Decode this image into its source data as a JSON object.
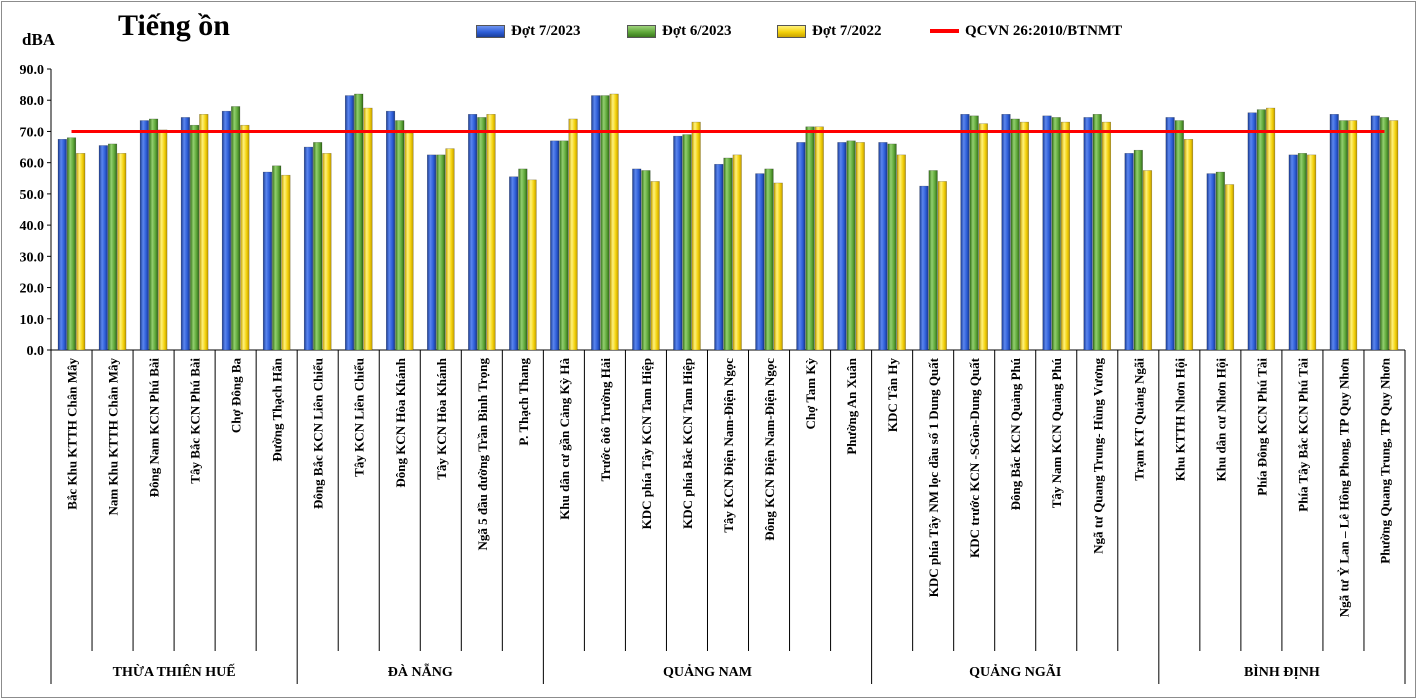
{
  "chart_data": {
    "type": "bar",
    "title": "Tiếng ồn",
    "ylabel": "dBA",
    "ylim": [
      0,
      90
    ],
    "yticks": [
      "0.0",
      "10.0",
      "20.0",
      "30.0",
      "40.0",
      "50.0",
      "60.0",
      "70.0",
      "80.0",
      "90.0"
    ],
    "grid": false,
    "legend_position": "top",
    "categories": [
      "Bắc Khu KTTH Chân Mây",
      "Nam Khu KTTH Chân Mây",
      "Đông Nam KCN Phú Bài",
      "Tây Bắc KCN Phú Bài",
      "Chợ Đông Ba",
      "Đường Thạch Hãn",
      "Đông Bắc KCN Liên Chiểu",
      "Tây KCN Liên Chiểu",
      "Đông KCN Hòa Khánh",
      "Tây KCN Hòa Khánh",
      "Ngã 5 đầu đường Trần Bình Trọng",
      "P. Thạch Thang",
      "Khu dân cư gần Cảng Kỳ Hà",
      "Trước ôtô Trường Hải",
      "KDC phía Tây KCN Tam Hiệp",
      "KDC phía Bắc KCN Tam Hiệp",
      "Tây KCN Điện Nam-Điện Ngọc",
      "Đông KCN Điện Nam-Điện Ngọc",
      "Chợ Tam Kỳ",
      "Phường An Xuân",
      "KDC Tân Hy",
      "KDC phía Tây NM lọc dầu số 1 Dung Quất",
      "KDC trước KCN -SGòn-Dung Quất",
      "Đông Bắc KCN Quảng Phú",
      "Tây Nam KCN Quảng Phú",
      "Ngã tư Quang Trung- Hùng Vương",
      "Trạm KT Quảng Ngãi",
      "Khu KTTH Nhơn Hội",
      "Khu dân cư Nhơn Hội",
      "Phía Đông KCN Phú Tài",
      "Phía Tây Bắc KCN Phú Tài",
      "Ngã tư Ỷ Lan – Lê Hồng Phong, TP Quy Nhơn",
      "Phường Quang Trung, TP Quy Nhơn"
    ],
    "series": [
      {
        "name": "Đợt 7/2023",
        "color": "#2e5ed8",
        "values": [
          67.5,
          65.5,
          73.5,
          74.5,
          76.5,
          57.0,
          65.0,
          81.5,
          76.5,
          62.5,
          75.5,
          55.5,
          67.0,
          81.5,
          58.0,
          68.5,
          59.5,
          56.5,
          66.5,
          66.5,
          66.5,
          52.5,
          75.5,
          75.5,
          75.0,
          74.5,
          63.0,
          74.5,
          56.5,
          76.0,
          62.5,
          75.5,
          75.0
        ]
      },
      {
        "name": "Đợt 6/2023",
        "color": "#5fa83a",
        "values": [
          68.0,
          66.0,
          74.0,
          72.0,
          78.0,
          59.0,
          66.5,
          82.0,
          73.5,
          62.5,
          74.5,
          58.0,
          67.0,
          81.5,
          57.5,
          69.0,
          61.5,
          58.0,
          71.5,
          67.0,
          66.0,
          57.5,
          75.0,
          74.0,
          74.5,
          75.5,
          64.0,
          73.5,
          57.0,
          77.0,
          63.0,
          73.5,
          74.5
        ]
      },
      {
        "name": "Đợt 7/2022",
        "color": "#f3d10a",
        "values": [
          63.0,
          63.0,
          70.5,
          75.5,
          72.0,
          56.0,
          63.0,
          77.5,
          69.5,
          64.5,
          75.5,
          54.5,
          74.0,
          82.0,
          54.0,
          73.0,
          62.5,
          53.5,
          71.5,
          66.5,
          62.5,
          54.0,
          72.5,
          73.0,
          73.0,
          73.0,
          57.5,
          67.5,
          53.0,
          77.5,
          62.5,
          73.5,
          73.5
        ]
      }
    ],
    "reference_line": {
      "name": "QCVN 26:2010/BTNMT",
      "value": 70,
      "color": "#ff0000"
    },
    "groups": [
      {
        "name": "THỪA THIÊN HUẾ",
        "count": 6
      },
      {
        "name": "ĐÀ NẴNG",
        "count": 6
      },
      {
        "name": "QUẢNG NAM",
        "count": 8
      },
      {
        "name": "QUẢNG NGÃI",
        "count": 7
      },
      {
        "name": "BÌNH ĐỊNH",
        "count": 6
      }
    ]
  }
}
